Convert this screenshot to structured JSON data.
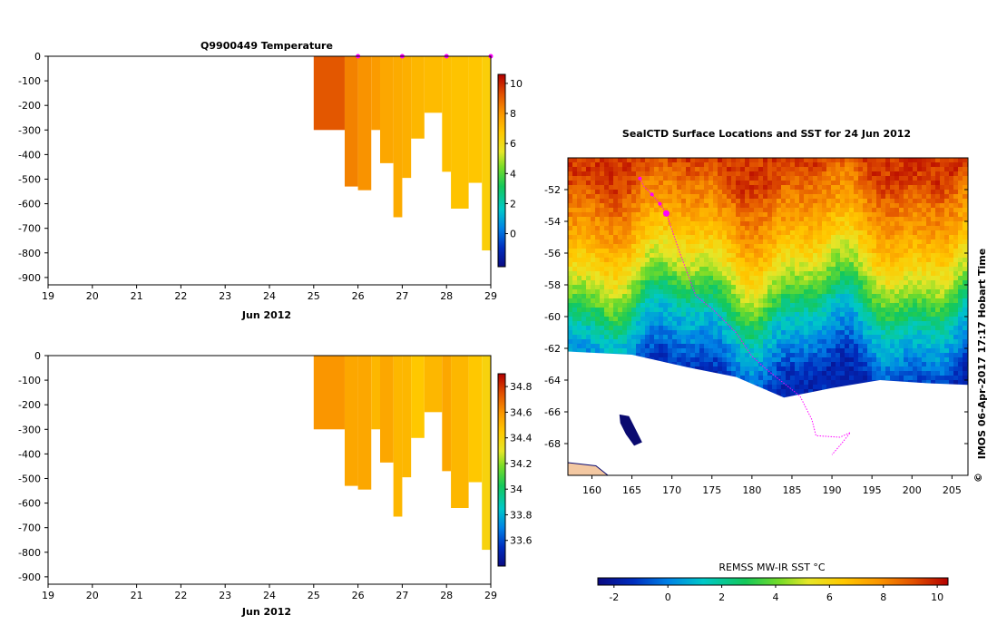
{
  "chart_data": [
    {
      "id": "temperature",
      "type": "heatmap",
      "title": "Q9900449  Temperature",
      "xlabel": "Jun 2012",
      "ylabel": "",
      "xlim": [
        19,
        29
      ],
      "ylim": [
        -930,
        0
      ],
      "xticks": [
        "19",
        "20",
        "21",
        "22",
        "23",
        "24",
        "25",
        "26",
        "27",
        "28",
        "29"
      ],
      "yticks": [
        "0",
        "-100",
        "-200",
        "-300",
        "-400",
        "-500",
        "-600",
        "-700",
        "-800",
        "-900"
      ],
      "profiles": [
        {
          "t0": 25.0,
          "t1": 25.7,
          "depth": 300,
          "value": 9.2
        },
        {
          "t0": 25.7,
          "t1": 26.0,
          "depth": 530,
          "value": 8.4
        },
        {
          "t0": 26.0,
          "t1": 26.3,
          "depth": 545,
          "value": 8.1
        },
        {
          "t0": 26.3,
          "t1": 26.5,
          "depth": 300,
          "value": 7.9
        },
        {
          "t0": 26.5,
          "t1": 26.8,
          "depth": 435,
          "value": 7.6
        },
        {
          "t0": 26.8,
          "t1": 27.0,
          "depth": 655,
          "value": 7.5
        },
        {
          "t0": 27.0,
          "t1": 27.2,
          "depth": 495,
          "value": 7.4
        },
        {
          "t0": 27.2,
          "t1": 27.5,
          "depth": 335,
          "value": 7.2
        },
        {
          "t0": 27.5,
          "t1": 27.9,
          "depth": 230,
          "value": 7.1
        },
        {
          "t0": 27.9,
          "t1": 28.1,
          "depth": 470,
          "value": 7.0
        },
        {
          "t0": 28.1,
          "t1": 28.5,
          "depth": 620,
          "value": 6.9
        },
        {
          "t0": 28.5,
          "t1": 28.8,
          "depth": 515,
          "value": 6.8
        },
        {
          "t0": 28.8,
          "t1": 29.0,
          "depth": 790,
          "value": 6.5
        }
      ],
      "markers": [
        26.0,
        27.0,
        28.0,
        29.0
      ],
      "colorbar": {
        "min": -2.2,
        "max": 10.6,
        "ticks": [
          "10",
          "8",
          "6",
          "4",
          "2",
          "0"
        ]
      }
    },
    {
      "id": "salinity",
      "type": "heatmap",
      "title": "",
      "xlabel": "Jun 2012",
      "ylabel": "",
      "xlim": [
        19,
        29
      ],
      "ylim": [
        -930,
        0
      ],
      "xticks": [
        "19",
        "20",
        "21",
        "22",
        "23",
        "24",
        "25",
        "26",
        "27",
        "28",
        "29"
      ],
      "yticks": [
        "0",
        "-100",
        "-200",
        "-300",
        "-400",
        "-500",
        "-600",
        "-700",
        "-800",
        "-900"
      ],
      "profiles": [
        {
          "t0": 25.0,
          "t1": 25.7,
          "depth": 300,
          "value": 34.6
        },
        {
          "t0": 25.7,
          "t1": 26.0,
          "depth": 530,
          "value": 34.55
        },
        {
          "t0": 26.0,
          "t1": 26.3,
          "depth": 545,
          "value": 34.55
        },
        {
          "t0": 26.3,
          "t1": 26.5,
          "depth": 300,
          "value": 34.5
        },
        {
          "t0": 26.5,
          "t1": 26.8,
          "depth": 435,
          "value": 34.55
        },
        {
          "t0": 26.8,
          "t1": 27.0,
          "depth": 655,
          "value": 34.5
        },
        {
          "t0": 27.0,
          "t1": 27.2,
          "depth": 495,
          "value": 34.5
        },
        {
          "t0": 27.2,
          "t1": 27.5,
          "depth": 335,
          "value": 34.45
        },
        {
          "t0": 27.5,
          "t1": 27.9,
          "depth": 230,
          "value": 34.5
        },
        {
          "t0": 27.9,
          "t1": 28.1,
          "depth": 470,
          "value": 34.55
        },
        {
          "t0": 28.1,
          "t1": 28.5,
          "depth": 620,
          "value": 34.5
        },
        {
          "t0": 28.5,
          "t1": 28.8,
          "depth": 515,
          "value": 34.45
        },
        {
          "t0": 28.8,
          "t1": 29.0,
          "depth": 790,
          "value": 34.4
        }
      ],
      "colorbar": {
        "min": 33.4,
        "max": 34.9,
        "ticks": [
          "34.8",
          "34.6",
          "34.4",
          "34.2",
          "34",
          "33.8",
          "33.6"
        ]
      }
    },
    {
      "id": "sst_map",
      "type": "heatmap",
      "title": "SealCTD Surface Locations and SST for 24 Jun 2012",
      "xlabel": "",
      "ylabel": "",
      "xlim": [
        157,
        207
      ],
      "ylim": [
        -70,
        -50
      ],
      "xticks": [
        "160",
        "165",
        "170",
        "175",
        "180",
        "185",
        "190",
        "195",
        "200",
        "205"
      ],
      "yticks": [
        "-52",
        "-54",
        "-56",
        "-58",
        "-60",
        "-62",
        "-64",
        "-66",
        "-68"
      ],
      "sst_zonal_profile": [
        {
          "lat": -50.5,
          "sst": 9.5
        },
        {
          "lat": -52,
          "sst": 8.5
        },
        {
          "lat": -54,
          "sst": 7.5
        },
        {
          "lat": -56,
          "sst": 6.0
        },
        {
          "lat": -58,
          "sst": 4.0
        },
        {
          "lat": -60,
          "sst": 1.5
        },
        {
          "lat": -62,
          "sst": 0.0
        },
        {
          "lat": -64,
          "sst": -1.5
        }
      ],
      "ice_edge": [
        [
          157,
          -62.2
        ],
        [
          165,
          -62.4
        ],
        [
          172,
          -63.2
        ],
        [
          178,
          -63.8
        ],
        [
          184,
          -65.1
        ],
        [
          190,
          -64.5
        ],
        [
          196,
          -64.0
        ],
        [
          202,
          -64.2
        ],
        [
          207,
          -64.3
        ]
      ],
      "track": [
        [
          166.0,
          -51.3
        ],
        [
          166.5,
          -51.8
        ],
        [
          167.5,
          -52.3
        ],
        [
          168.5,
          -52.9
        ],
        [
          169.3,
          -53.5
        ],
        [
          171,
          -56
        ],
        [
          173,
          -58.7
        ],
        [
          175,
          -59.5
        ],
        [
          178,
          -61
        ],
        [
          180,
          -62.5
        ],
        [
          182,
          -63.4
        ],
        [
          186,
          -65
        ],
        [
          187.5,
          -66.5
        ],
        [
          188,
          -67.5
        ],
        [
          191,
          -67.6
        ],
        [
          192.3,
          -67.3
        ],
        [
          191.2,
          -68
        ],
        [
          190,
          -68.7
        ]
      ],
      "seal_locations": [
        [
          166.0,
          -51.3
        ],
        [
          167.5,
          -52.3
        ],
        [
          168.5,
          -52.9
        ],
        [
          169.3,
          -53.5
        ]
      ],
      "land": [
        {
          "name": "balleny-islands",
          "poly": [
            [
              163.5,
              -66.2
            ],
            [
              164.6,
              -66.3
            ],
            [
              165.5,
              -67.2
            ],
            [
              166.2,
              -67.9
            ],
            [
              165.3,
              -68.1
            ],
            [
              164.3,
              -67.4
            ],
            [
              163.6,
              -66.7
            ]
          ]
        },
        {
          "name": "victoria-land-coast",
          "poly": [
            [
              157,
              -69.2
            ],
            [
              160.5,
              -69.4
            ],
            [
              162,
              -70
            ],
            [
              157,
              -70
            ]
          ]
        }
      ]
    }
  ],
  "sst_colorbar": {
    "title": "REMSS MW-IR SST °C",
    "min": -2.6,
    "max": 10.4,
    "ticks": [
      "-2",
      "0",
      "2",
      "4",
      "6",
      "8",
      "10"
    ]
  },
  "credit": "IMOS 06-Apr-2017 17:17 Hobart Time",
  "colors": {
    "marker": "#ff00ff",
    "land": "#f3c8a2",
    "sea_ice": "#ffffff"
  }
}
